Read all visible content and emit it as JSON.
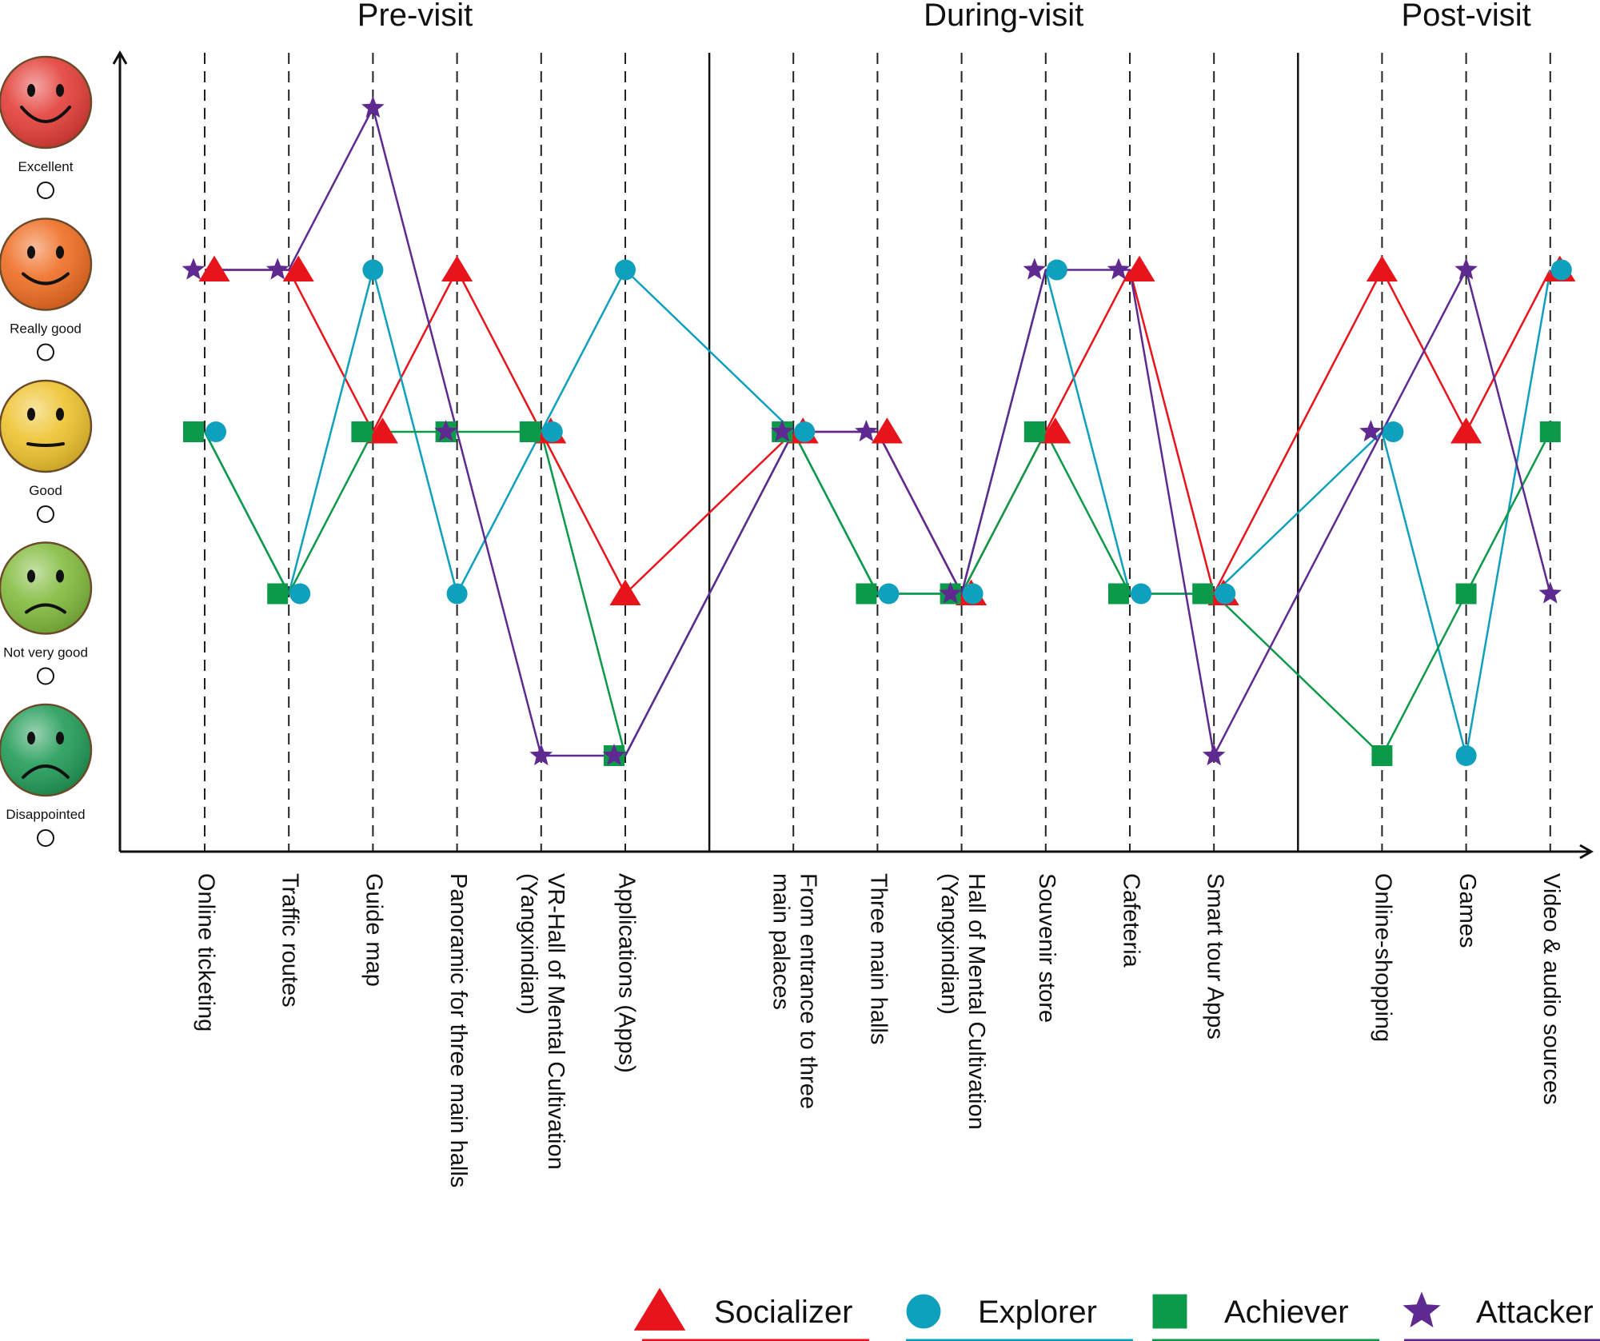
{
  "chart_data": {
    "type": "line",
    "phases": [
      {
        "label": "Pre-visit",
        "start": 0,
        "end": 5
      },
      {
        "label": "During-visit",
        "start": 6,
        "end": 11
      },
      {
        "label": "Post-visit",
        "start": 12,
        "end": 14
      }
    ],
    "categories": [
      [
        "Online ticketing"
      ],
      [
        "Traffic routes"
      ],
      [
        "Guide map"
      ],
      [
        "Panoramic for three main halls"
      ],
      [
        "VR-Hall of Mental Cultivation",
        "(Yangxindian)"
      ],
      [
        "Applications (Apps)"
      ],
      [
        "From entrance to three",
        "main palaces"
      ],
      [
        "Three main halls"
      ],
      [
        "Hall of Mental Cultivation",
        "(Yangxindian)"
      ],
      [
        "Souvenir store"
      ],
      [
        "Cafeteria"
      ],
      [
        "Smart tour Apps"
      ],
      [
        "Online-shopping"
      ],
      [
        "Games"
      ],
      [
        "Video & audio sources"
      ]
    ],
    "levels": [
      {
        "label": "Disappointed",
        "value": 1,
        "face": "deeply-sad-face-icon",
        "color": "#1e9a55"
      },
      {
        "label": "Not very good",
        "value": 2,
        "face": "sad-face-icon",
        "color": "#7fba3a"
      },
      {
        "label": "Good",
        "value": 3,
        "face": "neutral-face-icon",
        "color": "#eec22a"
      },
      {
        "label": "Really good",
        "value": 4,
        "face": "smile-face-icon",
        "color": "#ef6a1e"
      },
      {
        "label": "Excellent",
        "value": 5,
        "face": "happy-face-icon",
        "color": "#e33a34"
      }
    ],
    "ylim": [
      1,
      5
    ],
    "series": [
      {
        "name": "Socializer",
        "marker": "triangle",
        "color": "#e8141c",
        "values": [
          4,
          4,
          3,
          4,
          3,
          2,
          3,
          3,
          2,
          3,
          4,
          2,
          4,
          3,
          4
        ]
      },
      {
        "name": "Explorer",
        "marker": "circle",
        "color": "#0ea0bc",
        "values": [
          3,
          2,
          4,
          2,
          3,
          4,
          3,
          2,
          2,
          4,
          2,
          2,
          3,
          1,
          4
        ]
      },
      {
        "name": "Achiever",
        "marker": "square",
        "color": "#0c9a4a",
        "values": [
          3,
          2,
          3,
          3,
          3,
          1,
          3,
          2,
          2,
          3,
          2,
          2,
          1,
          2,
          3
        ]
      },
      {
        "name": "Attacker",
        "marker": "star",
        "color": "#5e2a90",
        "values": [
          4,
          4,
          5,
          3,
          1,
          1,
          3,
          3,
          2,
          4,
          4,
          1,
          3,
          4,
          2
        ]
      }
    ]
  }
}
